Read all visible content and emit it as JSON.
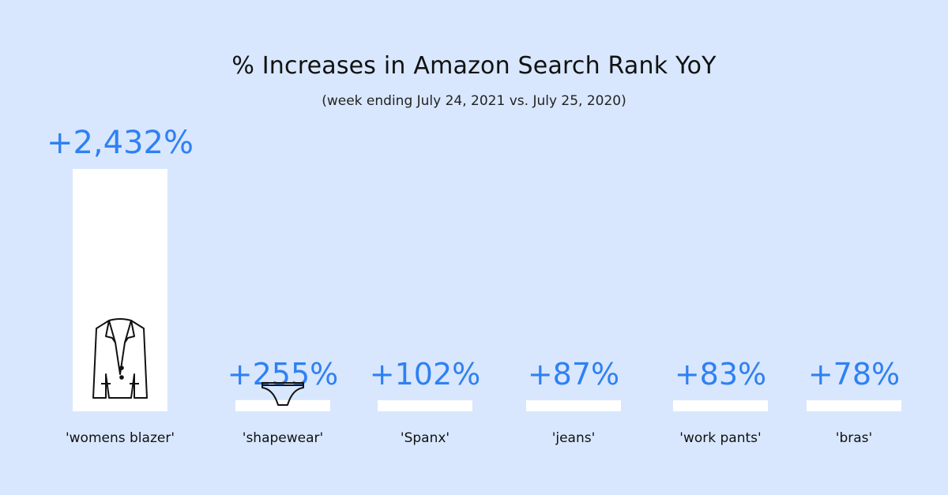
{
  "chart_data": {
    "type": "bar",
    "title": "% Increases in Amazon Search Rank YoY",
    "subtitle": "(week ending July 24, 2021 vs. July 25, 2020)",
    "categories": [
      "'womens blazer'",
      "'shapewear'",
      "'Spanx'",
      "'jeans'",
      "'work pants'",
      "'bras'"
    ],
    "values": [
      2432,
      255,
      102,
      87,
      83,
      78
    ],
    "value_labels": [
      "+2,432%",
      "+255%",
      "+102%",
      "+87%",
      "+83%",
      "+78%"
    ],
    "icons": [
      "blazer-icon",
      "shapewear-icon",
      null,
      null,
      null,
      null
    ],
    "colors": {
      "background": "#d8e7fd",
      "bar": "#ffffff",
      "value_text": "#2f80f3",
      "text": "#111111"
    }
  }
}
